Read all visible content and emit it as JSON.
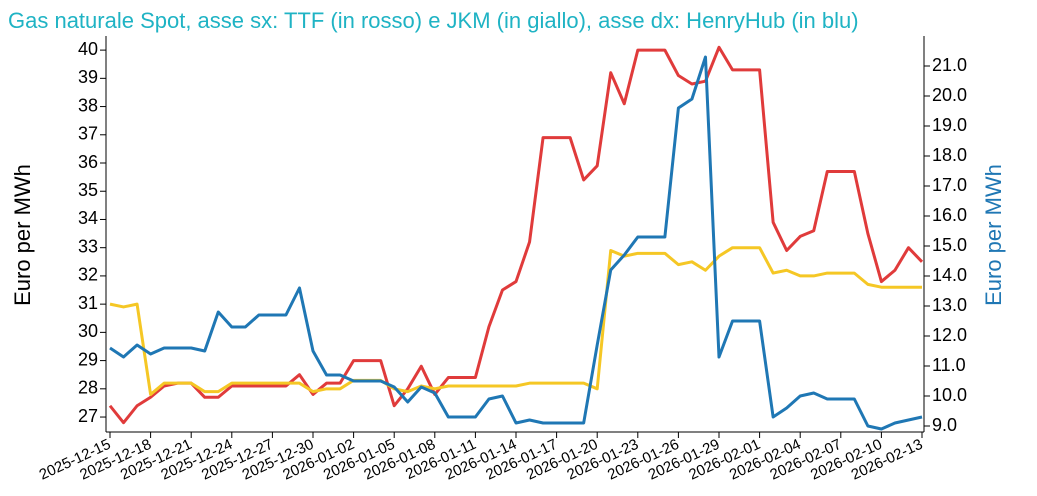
{
  "chart_data": {
    "type": "line",
    "title": "Gas naturale Spot, asse sx: TTF (in rosso) e JKM (in giallo), asse dx: HenryHub (in blu)",
    "ylabel": "Euro per MWh",
    "y2label": "Euro per MWh",
    "x": [
      "2025-12-15",
      "2025-12-16",
      "2025-12-17",
      "2025-12-18",
      "2025-12-19",
      "2025-12-20",
      "2025-12-21",
      "2025-12-22",
      "2025-12-23",
      "2025-12-24",
      "2025-12-25",
      "2025-12-26",
      "2025-12-27",
      "2025-12-28",
      "2025-12-29",
      "2025-12-30",
      "2025-12-31",
      "2026-01-01",
      "2026-01-02",
      "2026-01-03",
      "2026-01-04",
      "2026-01-05",
      "2026-01-06",
      "2026-01-07",
      "2026-01-08",
      "2026-01-09",
      "2026-01-10",
      "2026-01-11",
      "2026-01-12",
      "2026-01-13",
      "2026-01-14",
      "2026-01-15",
      "2026-01-16",
      "2026-01-17",
      "2026-01-18",
      "2026-01-19",
      "2026-01-20",
      "2026-01-21",
      "2026-01-22",
      "2026-01-23",
      "2026-01-24",
      "2026-01-25",
      "2026-01-26",
      "2026-01-27",
      "2026-01-28",
      "2026-01-29",
      "2026-01-30",
      "2026-01-31",
      "2026-02-01",
      "2026-02-02",
      "2026-02-03",
      "2026-02-04",
      "2026-02-05",
      "2026-02-06",
      "2026-02-07",
      "2026-02-08",
      "2026-02-09",
      "2026-02-10",
      "2026-02-11",
      "2026-02-12",
      "2026-02-13"
    ],
    "series": [
      {
        "name": "TTF",
        "color": "#e03b3b",
        "axis": "y",
        "values": [
          27.4,
          26.8,
          27.4,
          27.7,
          28.1,
          28.2,
          28.2,
          27.7,
          27.7,
          28.1,
          28.1,
          28.1,
          28.1,
          28.1,
          28.5,
          27.8,
          28.2,
          28.2,
          29.0,
          29.0,
          29.0,
          27.4,
          28.0,
          28.8,
          27.8,
          28.4,
          28.4,
          28.4,
          30.2,
          31.5,
          31.8,
          33.2,
          36.9,
          36.9,
          36.9,
          35.4,
          35.9,
          39.2,
          38.1,
          40.0,
          40.0,
          40.0,
          39.1,
          38.8,
          38.9,
          40.1,
          39.3,
          39.3,
          39.3,
          33.9,
          32.9,
          33.4,
          33.6,
          35.7,
          35.7,
          35.7,
          33.5,
          31.8,
          32.2,
          33.0,
          32.5
        ]
      },
      {
        "name": "JKM",
        "color": "#f5c725",
        "axis": "y",
        "values": [
          31.0,
          30.9,
          31.0,
          27.8,
          28.2,
          28.2,
          28.2,
          27.9,
          27.9,
          28.2,
          28.2,
          28.2,
          28.2,
          28.2,
          28.2,
          27.9,
          28.0,
          28.0,
          28.3,
          28.3,
          28.3,
          28.0,
          27.9,
          28.1,
          28.0,
          28.1,
          28.1,
          28.1,
          28.1,
          28.1,
          28.1,
          28.2,
          28.2,
          28.2,
          28.2,
          28.2,
          28.0,
          32.9,
          32.7,
          32.8,
          32.8,
          32.8,
          32.4,
          32.5,
          32.2,
          32.7,
          33.0,
          33.0,
          33.0,
          32.1,
          32.2,
          32.0,
          32.0,
          32.1,
          32.1,
          32.1,
          31.7,
          31.6,
          31.6,
          31.6,
          31.6
        ]
      },
      {
        "name": "HenryHub",
        "color": "#1f77b4",
        "axis": "y2",
        "values": [
          11.6,
          11.3,
          11.7,
          11.4,
          11.6,
          11.6,
          11.6,
          11.5,
          12.8,
          12.3,
          12.3,
          12.7,
          12.7,
          12.7,
          13.6,
          11.5,
          10.7,
          10.7,
          10.5,
          10.5,
          10.5,
          10.3,
          9.8,
          10.3,
          10.1,
          9.3,
          9.3,
          9.3,
          9.9,
          10.0,
          9.1,
          9.2,
          9.1,
          9.1,
          9.1,
          9.1,
          11.7,
          14.2,
          14.7,
          15.3,
          15.3,
          15.3,
          19.6,
          19.9,
          21.3,
          11.3,
          12.5,
          12.5,
          12.5,
          9.3,
          9.6,
          10.0,
          10.1,
          9.9,
          9.9,
          9.9,
          9.0,
          8.9,
          9.1,
          9.2,
          9.3
        ]
      }
    ],
    "xlim": [
      "2025-12-15",
      "2026-02-13"
    ],
    "xticks": [
      "2025-12-15",
      "2025-12-18",
      "2025-12-21",
      "2025-12-24",
      "2025-12-27",
      "2025-12-30",
      "2026-01-02",
      "2026-01-05",
      "2026-01-08",
      "2026-01-11",
      "2026-01-14",
      "2026-01-17",
      "2026-01-20",
      "2026-01-23",
      "2026-01-26",
      "2026-01-29",
      "2026-02-01",
      "2026-02-04",
      "2026-02-07",
      "2026-02-10",
      "2026-02-13"
    ],
    "ylim": [
      26.47,
      40.5
    ],
    "yticks": [
      27,
      28,
      29,
      30,
      31,
      32,
      33,
      34,
      35,
      36,
      37,
      38,
      39,
      40
    ],
    "y2lim": [
      8.8,
      22.0
    ],
    "y2ticks": [
      {
        "value": 9,
        "label": "9.0"
      },
      {
        "value": 10,
        "label": "10.0"
      },
      {
        "value": 11,
        "label": "11.0"
      },
      {
        "value": 12,
        "label": "12.0"
      },
      {
        "value": 13,
        "label": "13.0"
      },
      {
        "value": 14,
        "label": "14.0"
      },
      {
        "value": 15,
        "label": "15.0"
      },
      {
        "value": 16,
        "label": "16.0"
      },
      {
        "value": 17,
        "label": "17.0"
      },
      {
        "value": 18,
        "label": "18.0"
      },
      {
        "value": 19,
        "label": "19.0"
      },
      {
        "value": 20,
        "label": "20.0"
      },
      {
        "value": 21,
        "label": "21.0"
      }
    ],
    "y2color": "#1f77b4",
    "titlecolor": "#1fb3c4"
  }
}
